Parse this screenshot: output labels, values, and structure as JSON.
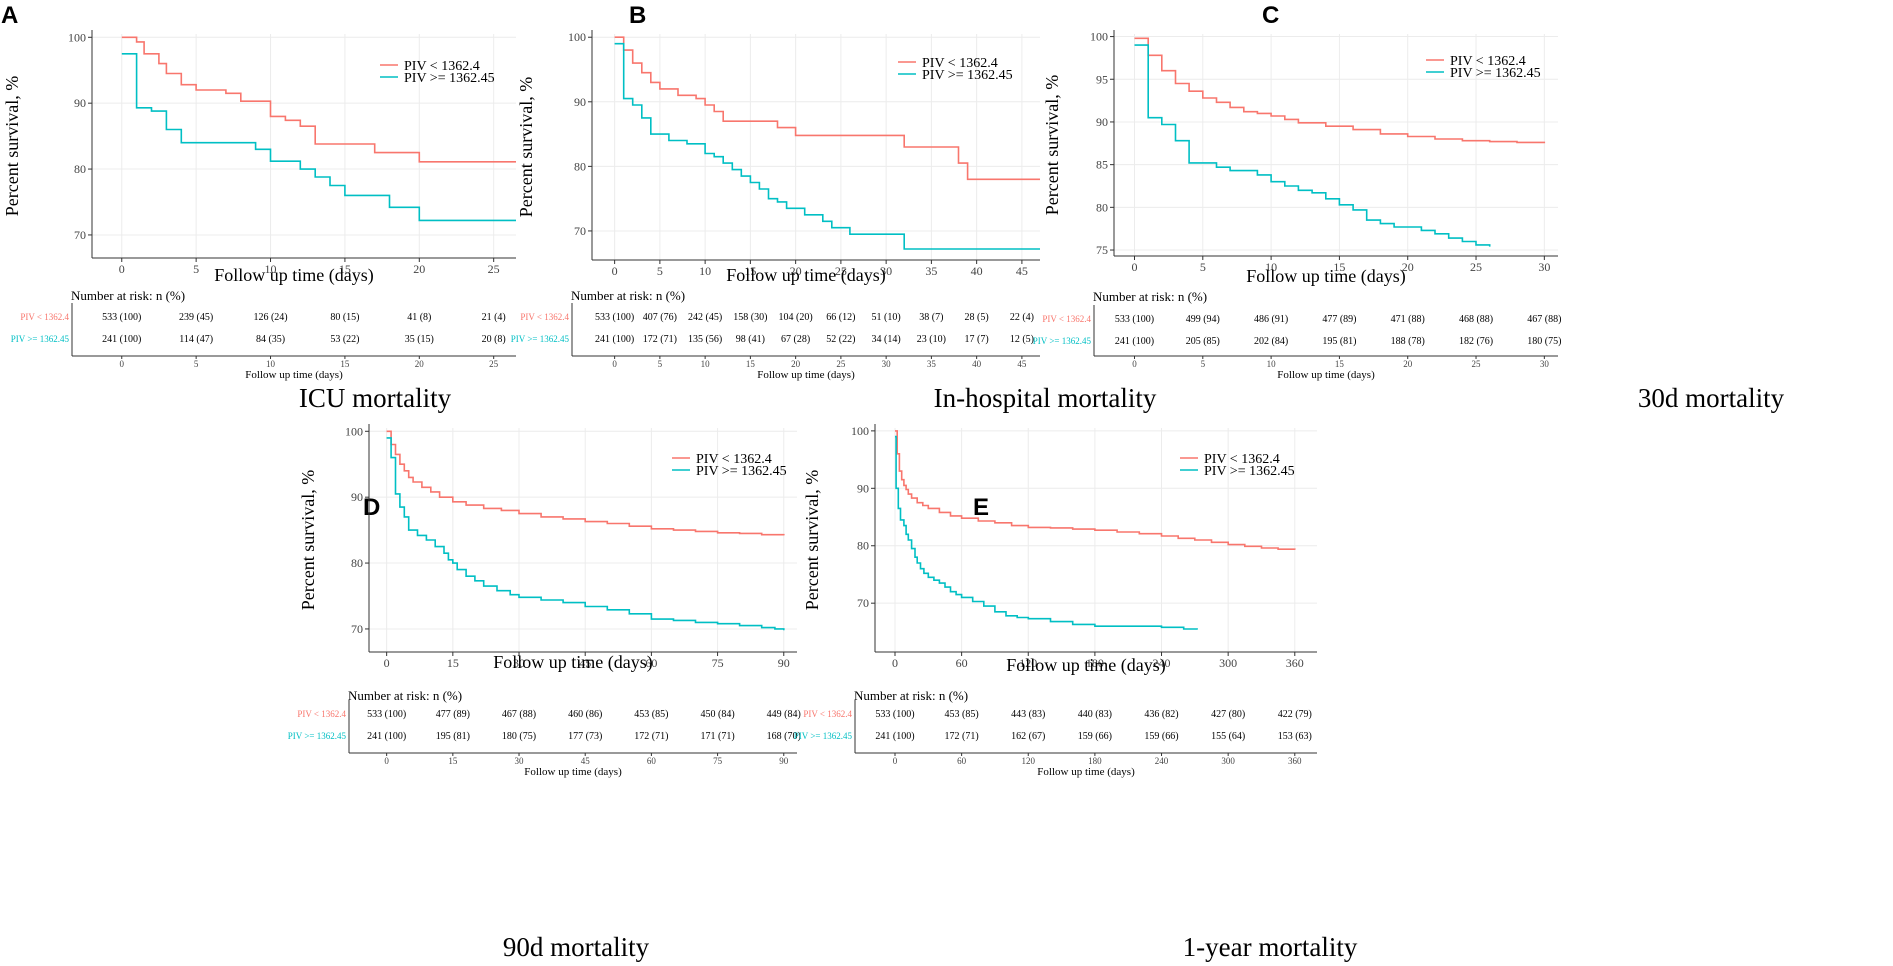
{
  "figure": {
    "risk_table_title": "Number at risk: n (%)",
    "risk_table_xlabel": "Follow up time (days)",
    "colors": {
      "low": "#f8766d",
      "high": "#00bfc4"
    }
  },
  "chart_data": [
    {
      "type": "line",
      "panel": "A",
      "caption": "ICU mortality",
      "xlabel": "Follow up time (days)",
      "ylabel": "Percent survival, %",
      "xlim": [
        -2,
        26.5
      ],
      "ylim": [
        66.5,
        100.5
      ],
      "xticks": [
        0,
        5,
        10,
        15,
        20,
        25
      ],
      "yticks": [
        70,
        80,
        90,
        100
      ],
      "legend": [
        "PIV < 1362.4",
        "PIV >= 1362.45"
      ],
      "series": [
        {
          "name": "PIV < 1362.4",
          "x": [
            0,
            1,
            1.5,
            2,
            2.5,
            3,
            4,
            5,
            7,
            8,
            10,
            11,
            12,
            13,
            14,
            17,
            20,
            26.5
          ],
          "y": [
            100,
            99.3,
            97.5,
            97.5,
            96.0,
            94.5,
            92.8,
            92.0,
            91.5,
            90.3,
            88.0,
            87.4,
            86.5,
            83.8,
            83.8,
            82.5,
            81.1,
            81.1
          ]
        },
        {
          "name": "PIV >= 1362.45",
          "x": [
            0,
            1,
            2,
            2.5,
            3,
            4,
            5,
            9,
            10,
            12,
            13,
            14,
            15,
            16,
            18,
            20,
            26.5
          ],
          "y": [
            97.5,
            89.3,
            88.8,
            88.8,
            86.0,
            84.0,
            84.0,
            83.0,
            81.2,
            80.0,
            78.8,
            77.5,
            76.0,
            76.0,
            74.2,
            72.2,
            72.2
          ]
        }
      ],
      "risk_table": {
        "groups": [
          "PIV < 1362.4",
          "PIV >= 1362.45"
        ],
        "ticks": [
          0,
          5,
          10,
          15,
          20,
          25
        ],
        "rows": [
          [
            "533 (100)",
            "239 (45)",
            "126 (24)",
            "80 (15)",
            "41 (8)",
            "21 (4)"
          ],
          [
            "241 (100)",
            "114 (47)",
            "84 (35)",
            "53 (22)",
            "35 (15)",
            "20 (8)"
          ]
        ]
      }
    },
    {
      "type": "line",
      "panel": "B",
      "caption": "In-hospital mortality",
      "xlabel": "Follow up time (days)",
      "ylabel": "Percent survival, %",
      "xlim": [
        -2.5,
        47
      ],
      "ylim": [
        65.5,
        100.5
      ],
      "xticks": [
        0,
        5,
        10,
        15,
        20,
        25,
        30,
        35,
        40,
        45
      ],
      "yticks": [
        70,
        80,
        90,
        100
      ],
      "legend": [
        "PIV < 1362.4",
        "PIV >= 1362.45"
      ],
      "series": [
        {
          "name": "PIV < 1362.4",
          "x": [
            0,
            1,
            2,
            3,
            4,
            5,
            7,
            9,
            10,
            11,
            12,
            13,
            18,
            20,
            32,
            38,
            39,
            47
          ],
          "y": [
            100,
            98.0,
            96.0,
            94.5,
            93.0,
            92.0,
            91.0,
            90.5,
            89.5,
            88.5,
            87.0,
            87.0,
            86.0,
            84.8,
            83.0,
            80.5,
            78.0,
            78.0
          ]
        },
        {
          "name": "PIV >= 1362.45",
          "x": [
            0,
            1,
            2,
            3,
            4,
            6,
            8,
            10,
            11,
            12,
            13,
            14,
            15,
            16,
            17,
            18,
            19,
            21,
            23,
            24,
            26,
            32,
            47
          ],
          "y": [
            99.0,
            90.5,
            89.5,
            87.5,
            85.0,
            84.0,
            83.5,
            82.0,
            81.5,
            80.5,
            79.5,
            78.5,
            77.5,
            76.5,
            75.0,
            74.5,
            73.5,
            72.5,
            71.5,
            70.5,
            69.5,
            67.2,
            67.2
          ]
        }
      ],
      "risk_table": {
        "groups": [
          "PIV < 1362.4",
          "PIV >= 1362.45"
        ],
        "ticks": [
          0,
          5,
          10,
          15,
          20,
          25,
          30,
          35,
          40,
          45
        ],
        "rows": [
          [
            "533 (100)",
            "407 (76)",
            "242 (45)",
            "158 (30)",
            "104 (20)",
            "66 (12)",
            "51 (10)",
            "38 (7)",
            "28 (5)",
            "22 (4)"
          ],
          [
            "241 (100)",
            "172 (71)",
            "135 (56)",
            "98 (41)",
            "67 (28)",
            "52 (22)",
            "34 (14)",
            "23 (10)",
            "17 (7)",
            "12 (5)"
          ]
        ]
      }
    },
    {
      "type": "line",
      "panel": "C",
      "caption": "30d mortality",
      "xlabel": "Follow up time (days)",
      "ylabel": "Percent survival, %",
      "xlim": [
        -1.5,
        31
      ],
      "ylim": [
        74.3,
        100.3
      ],
      "xticks": [
        0,
        5,
        10,
        15,
        20,
        25,
        30
      ],
      "yticks": [
        75,
        80,
        85,
        90,
        95,
        100
      ],
      "legend": [
        "PIV < 1362.4",
        "PIV >= 1362.45"
      ],
      "series": [
        {
          "name": "PIV < 1362.4",
          "x": [
            0,
            1,
            2,
            3,
            4,
            5,
            6,
            7,
            8,
            9,
            10,
            11,
            12,
            14,
            16,
            18,
            20,
            22,
            24,
            26,
            28,
            30
          ],
          "y": [
            99.8,
            97.8,
            96.0,
            94.5,
            93.6,
            92.8,
            92.3,
            91.7,
            91.2,
            91.0,
            90.7,
            90.3,
            89.9,
            89.5,
            89.1,
            88.6,
            88.3,
            88.0,
            87.8,
            87.7,
            87.6,
            87.5
          ]
        },
        {
          "name": "PIV >= 1362.45",
          "x": [
            0,
            1,
            2,
            3,
            4,
            6,
            7,
            9,
            10,
            11,
            12,
            13,
            14,
            15,
            16,
            17,
            18,
            19,
            21,
            22,
            23,
            24,
            25,
            26
          ],
          "y": [
            99.0,
            90.5,
            89.7,
            87.8,
            85.2,
            84.7,
            84.3,
            83.8,
            83.0,
            82.5,
            82.0,
            81.7,
            81.0,
            80.3,
            79.7,
            78.5,
            78.1,
            77.7,
            77.3,
            76.9,
            76.4,
            76.0,
            75.6,
            75.4
          ]
        }
      ],
      "risk_table": {
        "groups": [
          "PIV < 1362.4",
          "PIV >= 1362.45"
        ],
        "ticks": [
          0,
          5,
          10,
          15,
          20,
          25,
          30
        ],
        "rows": [
          [
            "533 (100)",
            "499 (94)",
            "486 (91)",
            "477 (89)",
            "471 (88)",
            "468 (88)",
            "467 (88)"
          ],
          [
            "241 (100)",
            "205 (85)",
            "202 (84)",
            "195 (81)",
            "188 (78)",
            "182 (76)",
            "180 (75)"
          ]
        ]
      }
    },
    {
      "type": "line",
      "panel": "D",
      "caption": "90d mortality",
      "xlabel": "Follow up time (days)",
      "ylabel": "Percent survival, %",
      "xlim": [
        -4,
        93
      ],
      "ylim": [
        66.5,
        100.5
      ],
      "xticks": [
        0,
        15,
        30,
        45,
        60,
        75,
        90
      ],
      "yticks": [
        70,
        80,
        90,
        100
      ],
      "legend": [
        "PIV < 1362.4",
        "PIV >= 1362.45"
      ],
      "series": [
        {
          "name": "PIV < 1362.4",
          "x": [
            0,
            1,
            2,
            3,
            4,
            5,
            6,
            8,
            10,
            12,
            15,
            18,
            22,
            26,
            30,
            35,
            40,
            45,
            50,
            55,
            60,
            65,
            70,
            75,
            80,
            85,
            90
          ],
          "y": [
            100,
            98.0,
            96.5,
            95.0,
            94.0,
            93.0,
            92.3,
            91.5,
            90.8,
            90.0,
            89.3,
            88.8,
            88.3,
            88.0,
            87.5,
            87.0,
            86.7,
            86.3,
            86.0,
            85.6,
            85.2,
            85.0,
            84.8,
            84.6,
            84.5,
            84.3,
            84.2
          ]
        },
        {
          "name": "PIV >= 1362.45",
          "x": [
            0,
            1,
            2,
            3,
            4,
            5,
            7,
            9,
            11,
            13,
            14,
            15,
            16,
            18,
            20,
            22,
            25,
            28,
            30,
            35,
            40,
            45,
            50,
            55,
            60,
            65,
            70,
            75,
            80,
            85,
            88,
            90
          ],
          "y": [
            99.0,
            96.0,
            90.5,
            88.5,
            87.0,
            85.0,
            84.2,
            83.5,
            82.5,
            81.5,
            80.5,
            80.0,
            79.0,
            78.0,
            77.3,
            76.5,
            75.8,
            75.2,
            74.8,
            74.4,
            74.0,
            73.4,
            72.9,
            72.3,
            71.5,
            71.3,
            71.0,
            70.8,
            70.5,
            70.2,
            70.0,
            69.8
          ]
        }
      ],
      "risk_table": {
        "groups": [
          "PIV < 1362.4",
          "PIV >= 1362.45"
        ],
        "ticks": [
          0,
          15,
          30,
          45,
          60,
          75,
          90
        ],
        "rows": [
          [
            "533 (100)",
            "477 (89)",
            "467 (88)",
            "460 (86)",
            "453 (85)",
            "450 (84)",
            "449 (84)"
          ],
          [
            "241 (100)",
            "195 (81)",
            "180 (75)",
            "177 (73)",
            "172 (71)",
            "171 (71)",
            "168 (70)"
          ]
        ]
      }
    },
    {
      "type": "line",
      "panel": "E",
      "caption": "1-year mortality",
      "xlabel": "Follow up time (days)",
      "ylabel": "Percent survival, %",
      "xlim": [
        -18,
        380
      ],
      "ylim": [
        61.5,
        100.5
      ],
      "xticks": [
        0,
        60,
        120,
        180,
        240,
        300,
        360
      ],
      "yticks": [
        70,
        80,
        90,
        100
      ],
      "legend": [
        "PIV < 1362.4",
        "PIV >= 1362.45"
      ],
      "series": [
        {
          "name": "PIV < 1362.4",
          "x": [
            0,
            2,
            4,
            6,
            8,
            10,
            12,
            15,
            20,
            25,
            30,
            40,
            50,
            60,
            75,
            90,
            105,
            120,
            140,
            160,
            180,
            200,
            220,
            240,
            255,
            270,
            285,
            300,
            315,
            330,
            345,
            360
          ],
          "y": [
            100,
            96.0,
            93.0,
            91.5,
            90.5,
            89.8,
            89.0,
            88.3,
            87.5,
            87.0,
            86.5,
            85.8,
            85.2,
            84.8,
            84.3,
            84.0,
            83.5,
            83.2,
            83.1,
            82.9,
            82.7,
            82.4,
            82.1,
            81.7,
            81.3,
            81.0,
            80.6,
            80.2,
            79.9,
            79.6,
            79.4,
            79.3
          ]
        },
        {
          "name": "PIV >= 1362.45",
          "x": [
            0,
            1,
            3,
            5,
            8,
            10,
            12,
            15,
            18,
            20,
            23,
            26,
            30,
            35,
            40,
            45,
            50,
            55,
            60,
            70,
            80,
            90,
            100,
            110,
            120,
            140,
            160,
            180,
            200,
            220,
            240,
            260,
            272
          ],
          "y": [
            99.0,
            90.0,
            86.5,
            84.5,
            83.5,
            82.0,
            81.0,
            79.5,
            78.0,
            77.0,
            76.0,
            75.2,
            74.5,
            74.0,
            73.5,
            72.8,
            72.0,
            71.5,
            71.0,
            70.3,
            69.5,
            68.5,
            67.8,
            67.5,
            67.3,
            66.8,
            66.3,
            66.0,
            66.0,
            66.0,
            65.8,
            65.5,
            65.4
          ]
        }
      ],
      "risk_table": {
        "groups": [
          "PIV < 1362.4",
          "PIV >= 1362.45"
        ],
        "ticks": [
          0,
          60,
          120,
          180,
          240,
          300,
          360
        ],
        "rows": [
          [
            "533 (100)",
            "453 (85)",
            "443 (83)",
            "440 (83)",
            "436 (82)",
            "427 (80)",
            "422 (79)"
          ],
          [
            "241 (100)",
            "172 (71)",
            "162 (67)",
            "159 (66)",
            "159 (66)",
            "155 (64)",
            "153 (63)"
          ]
        ]
      }
    }
  ]
}
